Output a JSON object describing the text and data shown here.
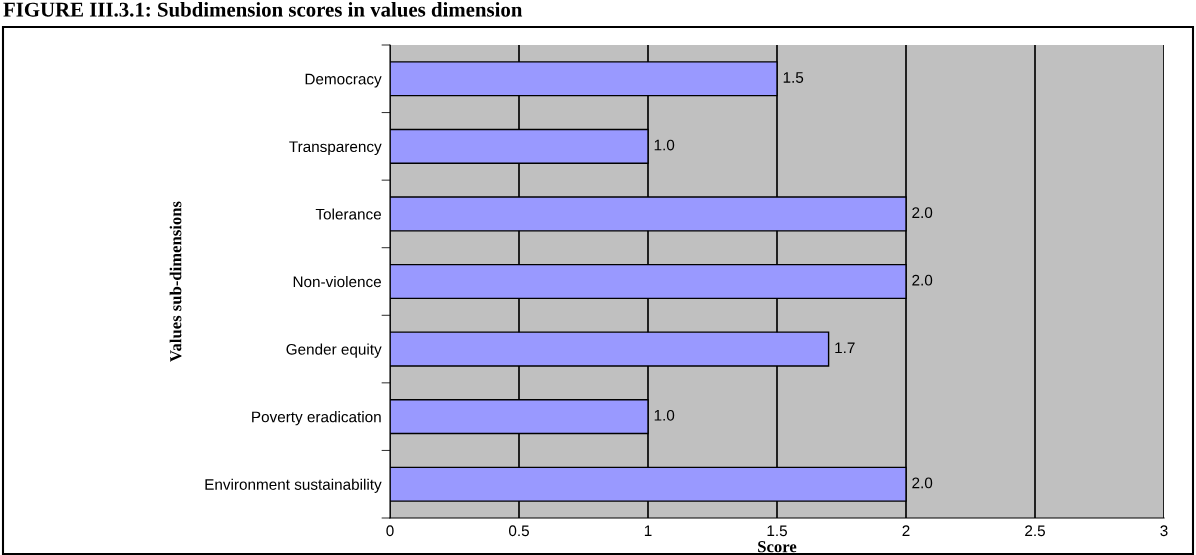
{
  "chart_data": {
    "type": "bar",
    "orientation": "horizontal",
    "title": "FIGURE III.3.1: Subdimension scores in values dimension",
    "xlabel": "Score",
    "ylabel": "Values sub-dimensions",
    "categories": [
      "Democracy",
      "Transparency",
      "Tolerance",
      "Non-violence",
      "Gender equity",
      "Poverty eradication",
      "Environment sustainability"
    ],
    "values": [
      1.5,
      1.0,
      2.0,
      2.0,
      1.7,
      1.0,
      2.0
    ],
    "value_labels": [
      "1.5",
      "1.0",
      "2.0",
      "2.0",
      "1.7",
      "1.0",
      "2.0"
    ],
    "color": "#9999ff",
    "xlim": [
      0,
      3
    ],
    "xticks": [
      0,
      0.5,
      1,
      1.5,
      2,
      2.5,
      3
    ],
    "grid": "x"
  }
}
